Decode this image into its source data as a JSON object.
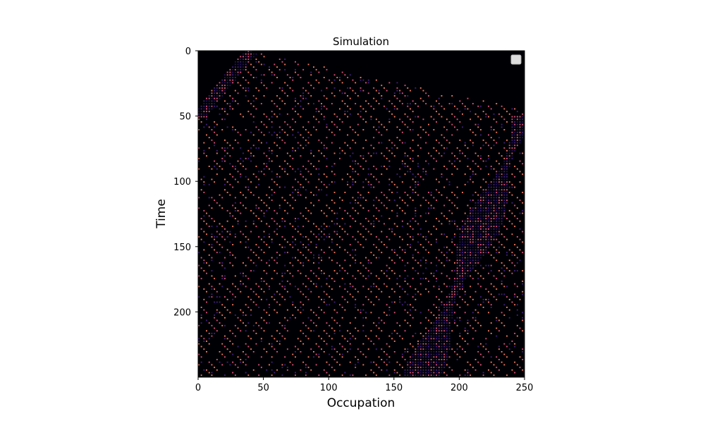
{
  "chart_data": {
    "type": "heatmap",
    "title": "Simulation",
    "xlabel": "Occupation",
    "ylabel": "Time",
    "xlim": [
      0,
      250
    ],
    "ylim": [
      250,
      0
    ],
    "x_ticks": [
      0,
      50,
      100,
      150,
      200,
      250
    ],
    "y_ticks": [
      0,
      50,
      100,
      150,
      200
    ],
    "colormap": "magma",
    "grid": false,
    "legend": {
      "placement": "top-right",
      "entries": []
    },
    "features": [
      {
        "name": "initial-empty-region",
        "description": "black (empty) region before traffic enters"
      },
      {
        "name": "jam-wave-upper-left",
        "description": "dense jam band moving backward",
        "t_start": 0,
        "t_end": 50,
        "x_start": 40,
        "x_end": 0
      },
      {
        "name": "jam-wave-right",
        "description": "dense jam band moving backward",
        "t_start": 50,
        "t_end": 250,
        "x_start": 250,
        "x_end": 170
      }
    ],
    "colors": {
      "background": "#000004",
      "empty": "#030208",
      "car_light": "#f07860",
      "car_mid": "#d8507a",
      "jam": "#3d1f78",
      "jam_deep": "#221155"
    }
  }
}
